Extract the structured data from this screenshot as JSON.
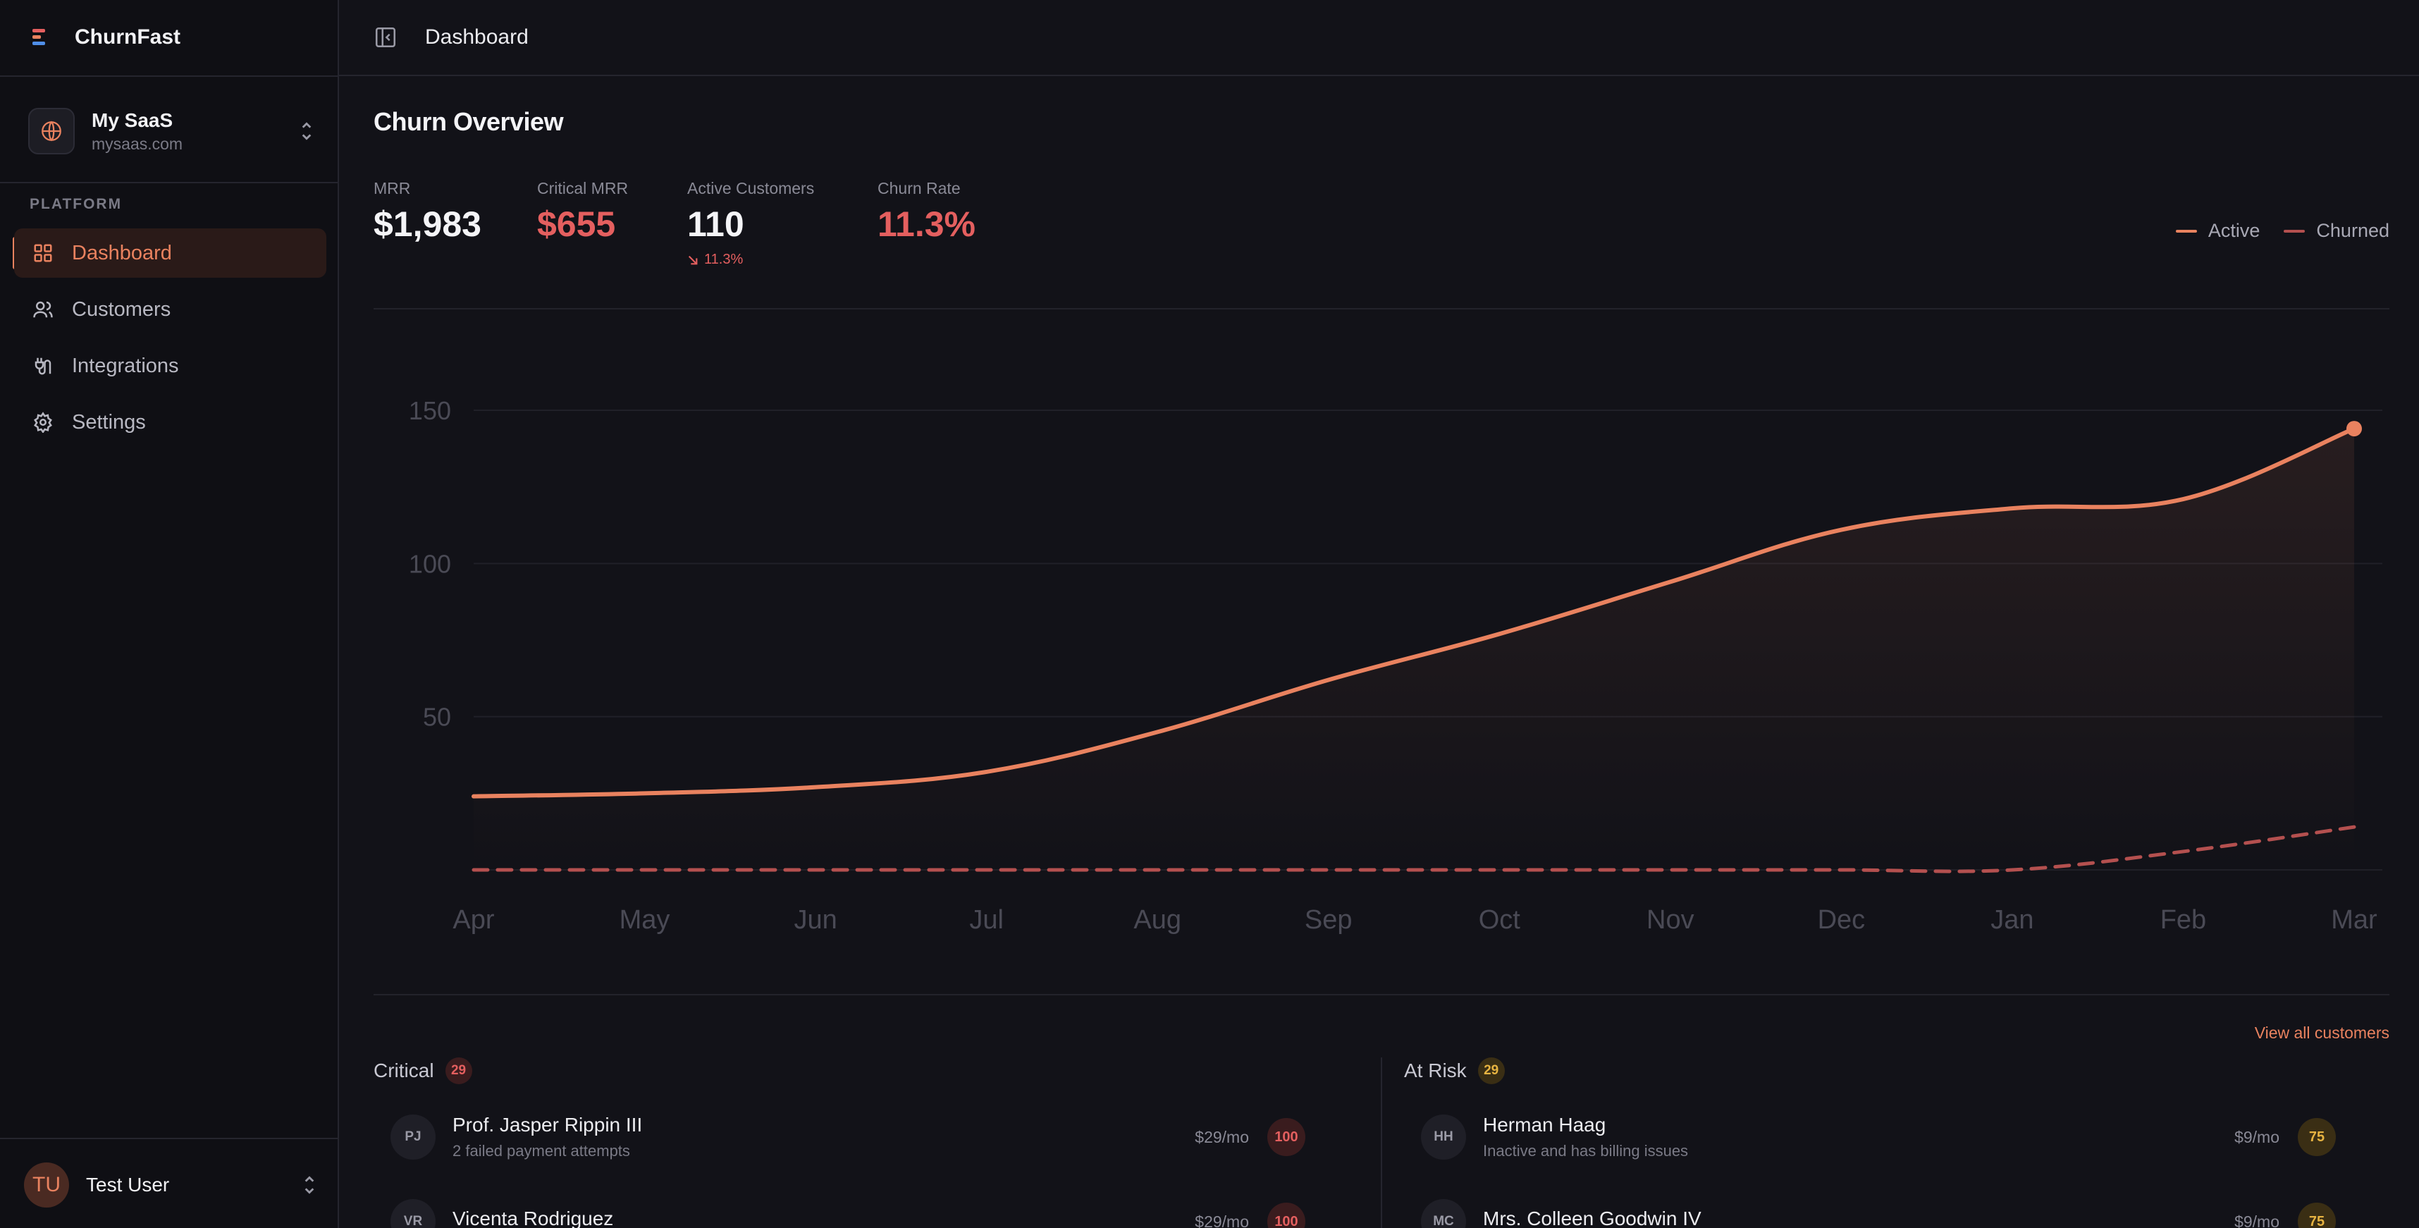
{
  "app": {
    "name": "ChurnFast"
  },
  "workspace": {
    "name": "My SaaS",
    "domain": "mysaas.com"
  },
  "sidebar": {
    "section_label": "PLATFORM",
    "items": [
      {
        "label": "Dashboard",
        "icon": "grid-icon",
        "active": true
      },
      {
        "label": "Customers",
        "icon": "users-icon"
      },
      {
        "label": "Integrations",
        "icon": "plug-icon"
      },
      {
        "label": "Settings",
        "icon": "gear-icon"
      }
    ]
  },
  "user": {
    "initials": "TU",
    "name": "Test User"
  },
  "topbar": {
    "breadcrumb": "Dashboard"
  },
  "main": {
    "title": "Churn Overview",
    "stats": [
      {
        "label": "MRR",
        "value": "$1,983"
      },
      {
        "label": "Critical MRR",
        "value": "$655"
      },
      {
        "label": "Active Customers",
        "value": "110",
        "delta": "11.3%"
      },
      {
        "label": "Churn Rate",
        "value": "11.3%"
      }
    ],
    "view_all": "View all customers"
  },
  "colors": {
    "accent": "#e9825f",
    "danger": "#e45f5f",
    "warning": "#e7b341",
    "churned": "#b4504f"
  },
  "chart_data": {
    "type": "line",
    "x": [
      "Apr",
      "May",
      "Jun",
      "Jul",
      "Aug",
      "Sep",
      "Oct",
      "Nov",
      "Dec",
      "Jan",
      "Feb",
      "Mar"
    ],
    "yticks": [
      50,
      100,
      150
    ],
    "ylim": [
      0,
      150
    ],
    "legend": "top-right",
    "series": [
      {
        "name": "Active",
        "color": "#e9825f",
        "values": [
          24,
          25,
          27,
          32,
          45,
          62,
          77,
          94,
          111,
          118,
          121,
          144
        ]
      },
      {
        "name": "Churned",
        "color": "#b4504f",
        "style": "dashed",
        "values": [
          0,
          0,
          0,
          0,
          0,
          0,
          0,
          0,
          0,
          0,
          6,
          14
        ]
      }
    ]
  },
  "panels": {
    "critical": {
      "title": "Critical",
      "count": "29",
      "rows": [
        {
          "initials": "PJ",
          "name": "Prof. Jasper Rippin III",
          "reason": "2 failed payment attempts",
          "mrr": "$29/mo",
          "score": "100"
        },
        {
          "initials": "VR",
          "name": "Vicenta Rodriguez",
          "reason": "",
          "mrr": "$29/mo",
          "score": "100"
        }
      ]
    },
    "at_risk": {
      "title": "At Risk",
      "count": "29",
      "rows": [
        {
          "initials": "HH",
          "name": "Herman Haag",
          "reason": "Inactive and has billing issues",
          "mrr": "$9/mo",
          "score": "75"
        },
        {
          "initials": "MC",
          "name": "Mrs. Colleen Goodwin IV",
          "reason": "",
          "mrr": "$9/mo",
          "score": "75"
        }
      ]
    }
  }
}
